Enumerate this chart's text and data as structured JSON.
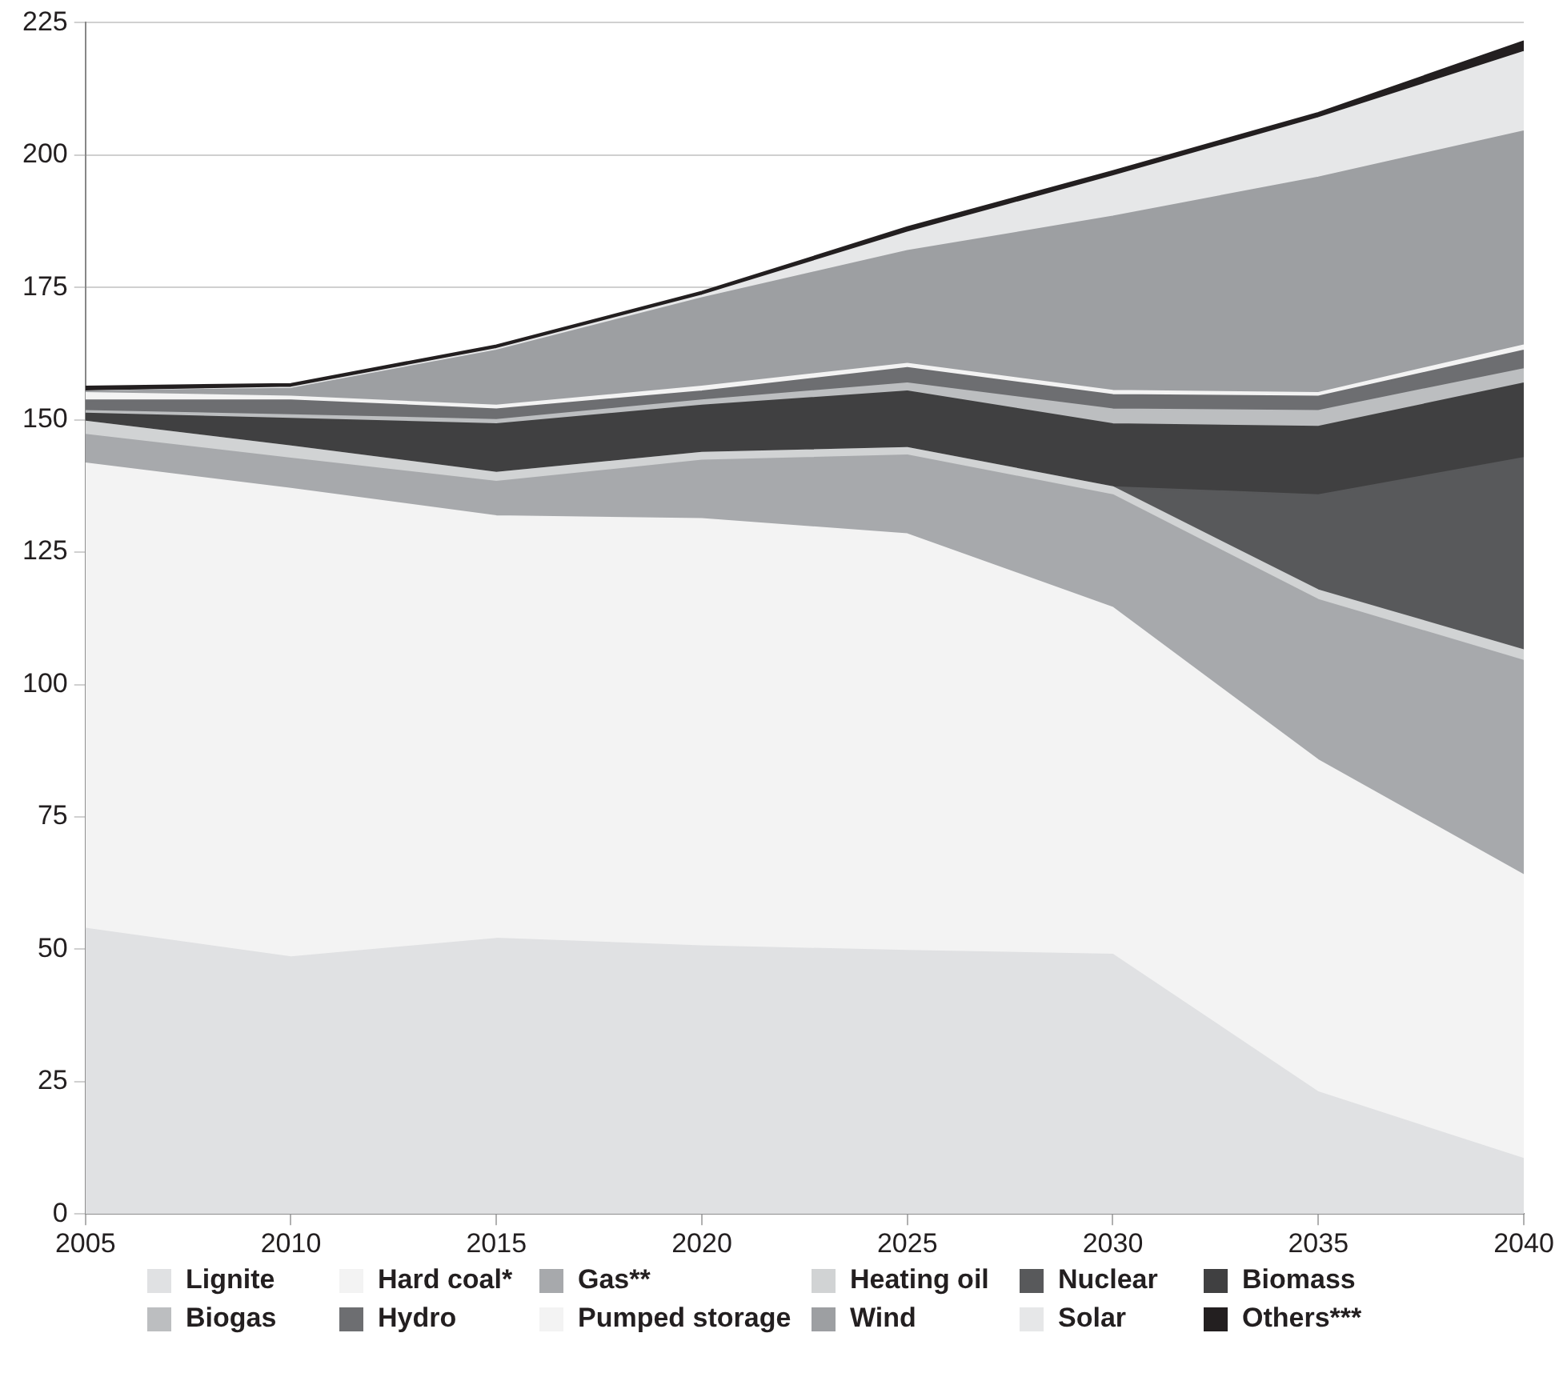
{
  "chart_data": {
    "type": "area",
    "stacked": true,
    "x": [
      2005,
      2010,
      2015,
      2020,
      2025,
      2030,
      2035,
      2040
    ],
    "xlim": [
      2005,
      2040
    ],
    "xticks": [
      2005,
      2010,
      2015,
      2020,
      2025,
      2030,
      2035,
      2040
    ],
    "ylim": [
      0,
      225
    ],
    "yticks": [
      0,
      25,
      50,
      75,
      100,
      125,
      150,
      175,
      200,
      225
    ],
    "grid": "y",
    "legend": "bottom",
    "series": [
      {
        "name": "Lignite",
        "color": "#e0e1e3",
        "values": [
          53.9,
          48.5,
          52,
          50.6,
          49.7,
          49,
          23,
          10.4
        ]
      },
      {
        "name": "Hard coal*",
        "color": "#f3f3f3",
        "values": [
          87.9,
          88.5,
          79.8,
          80.7,
          78.7,
          65.5,
          62.7,
          53.6
        ]
      },
      {
        "name": "Gas**",
        "color": "#a7a9ac",
        "values": [
          5.4,
          5.7,
          6.5,
          11,
          14.9,
          21.3,
          30.3,
          40.5
        ]
      },
      {
        "name": "Heating oil",
        "color": "#d1d3d4",
        "values": [
          2.5,
          2.3,
          1.7,
          1.5,
          1.4,
          1.5,
          1.8,
          2
        ]
      },
      {
        "name": "Nuclear",
        "color": "#58595b",
        "values": [
          0,
          0,
          0,
          0,
          0,
          0,
          18,
          36.3
        ]
      },
      {
        "name": "Biomass",
        "color": "#404041",
        "values": [
          1.5,
          5.2,
          9.2,
          8.9,
          10.7,
          11.9,
          12.9,
          14.1
        ]
      },
      {
        "name": "Biogas",
        "color": "#bcbec0",
        "values": [
          0.5,
          0.7,
          0.8,
          1,
          1.5,
          2.8,
          3,
          2.7
        ]
      },
      {
        "name": "Hydro",
        "color": "#6d6e71",
        "values": [
          2,
          2.8,
          2,
          1.7,
          2.9,
          2.7,
          2.7,
          3.5
        ]
      },
      {
        "name": "Pumped storage",
        "color": "#f3f3f3",
        "values": [
          1.4,
          0.7,
          0.7,
          0.9,
          0.8,
          0.8,
          0.7,
          1
        ]
      },
      {
        "name": "Wind",
        "color": "#9d9fa2",
        "values": [
          0.3,
          1.5,
          10.4,
          16.7,
          21.3,
          32.9,
          40.7,
          40.4
        ]
      },
      {
        "name": "Solar",
        "color": "#e6e7e8",
        "values": [
          0,
          0.2,
          0.3,
          0.5,
          3.5,
          7.6,
          11.2,
          15
        ]
      },
      {
        "name": "Others***",
        "color": "#231f20",
        "values": [
          0.9,
          0.7,
          0.7,
          0.7,
          1,
          1,
          1,
          2
        ]
      }
    ]
  }
}
